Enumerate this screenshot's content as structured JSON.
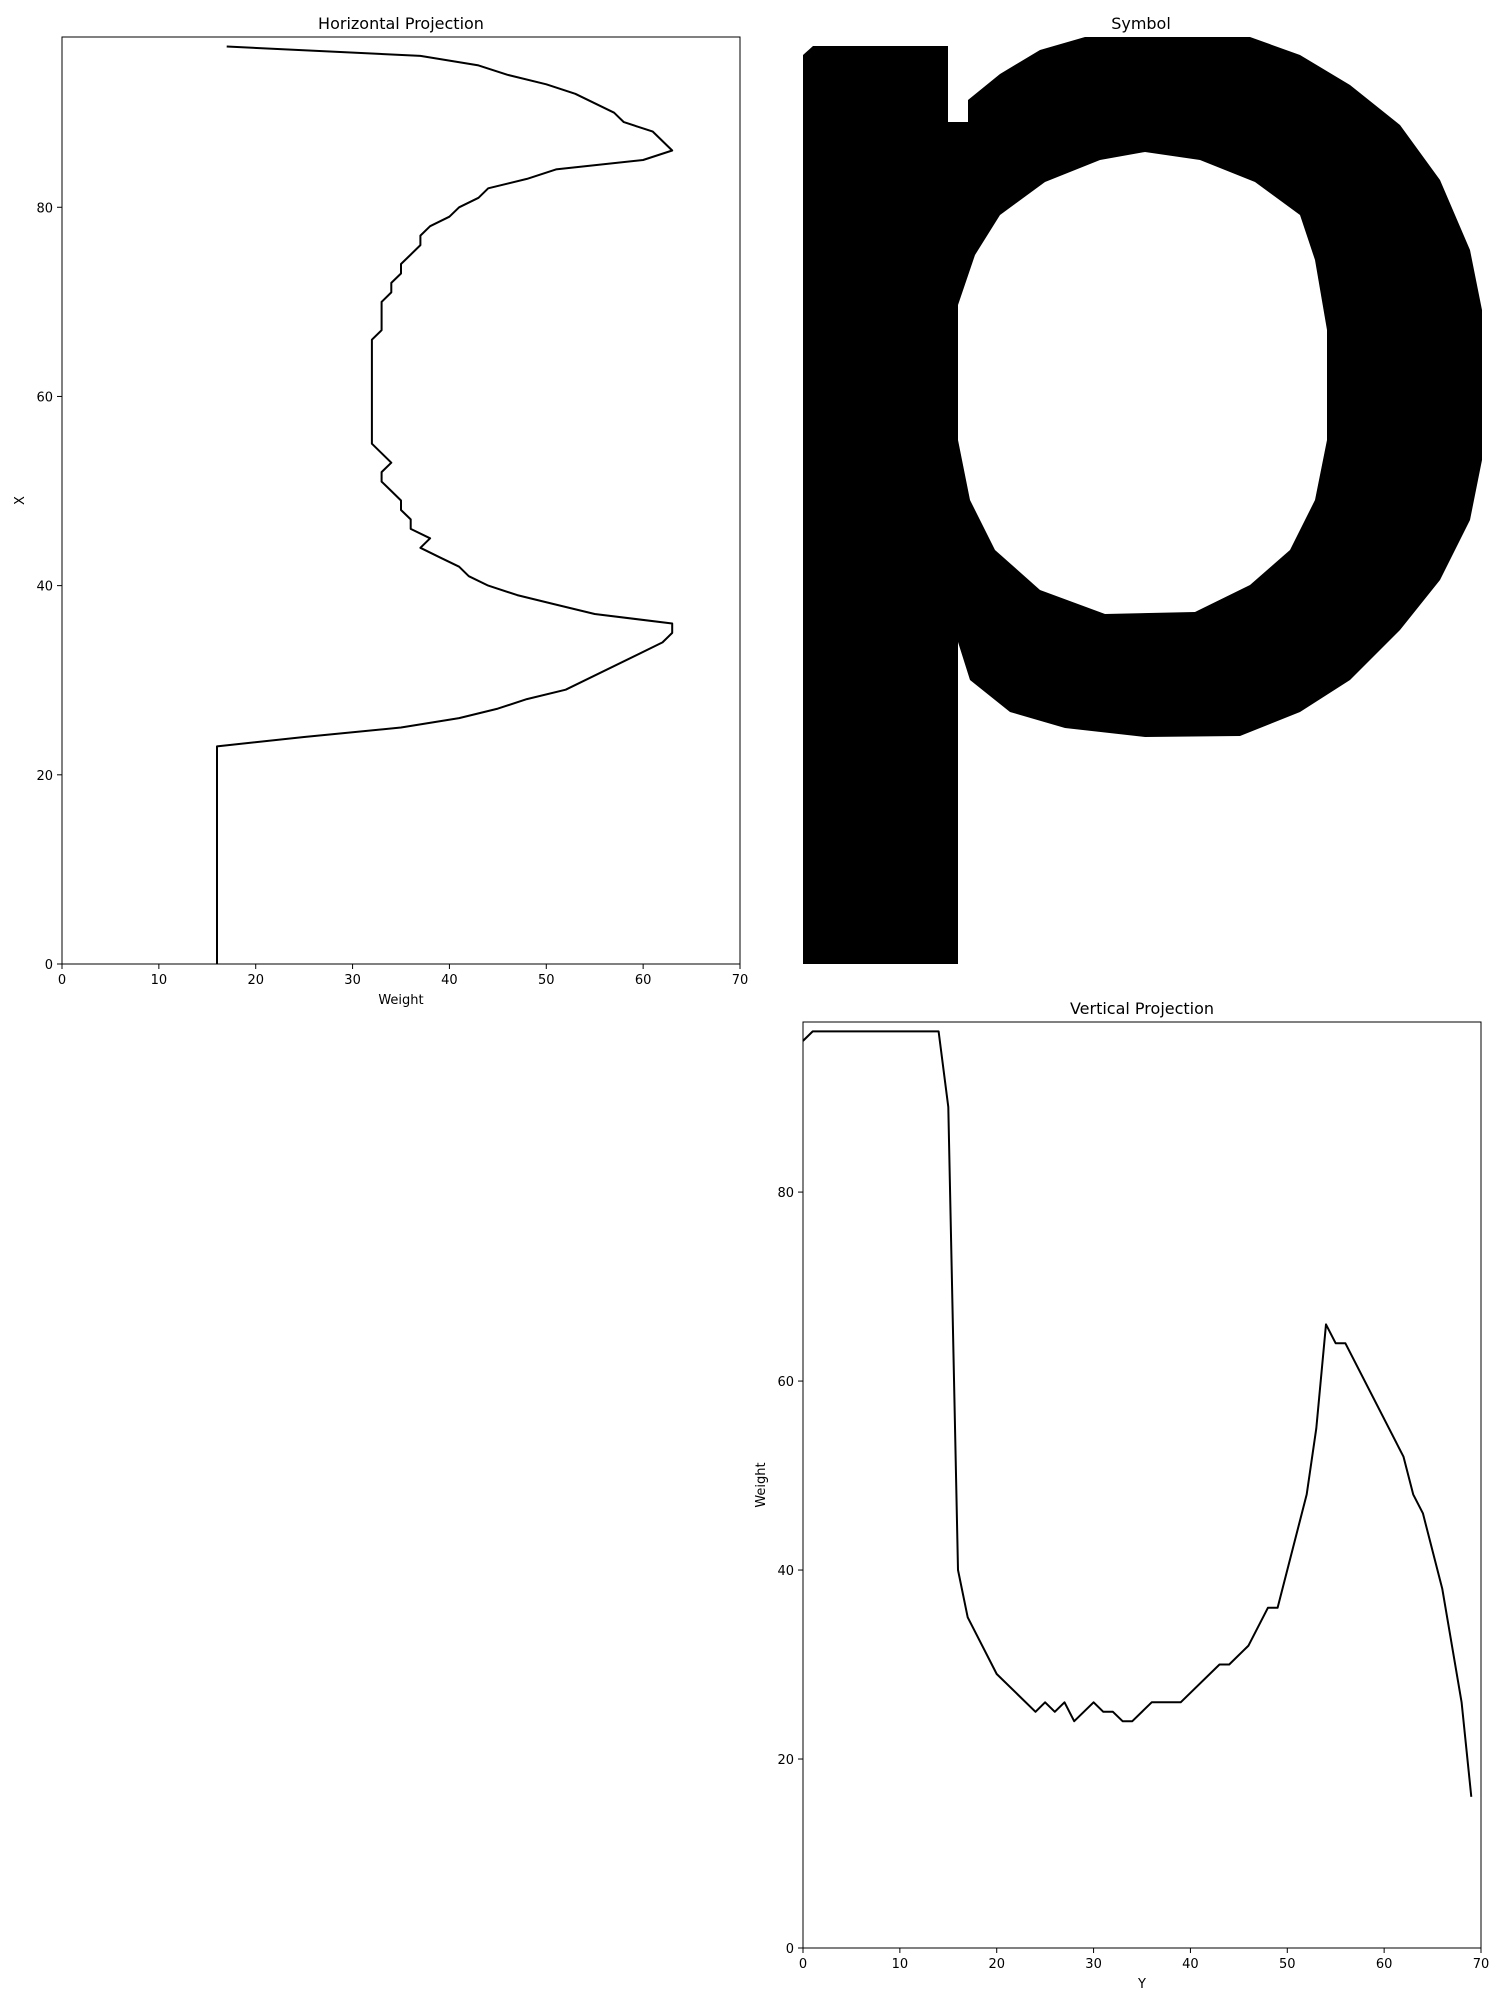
{
  "chart_data": [
    {
      "type": "line",
      "title": "Horizontal Projection",
      "xlabel": "Weight",
      "ylabel": "X",
      "xlim": [
        0,
        70
      ],
      "ylim": [
        0,
        98
      ],
      "xticks": [
        0,
        10,
        20,
        30,
        40,
        50,
        60,
        70
      ],
      "yticks": [
        0,
        20,
        40,
        60,
        80
      ],
      "grid": false,
      "series": [
        {
          "color": "#000000",
          "points": [
            [
              16,
              0
            ],
            [
              16,
              5
            ],
            [
              16,
              10
            ],
            [
              16,
              15
            ],
            [
              16,
              20
            ],
            [
              16,
              23
            ],
            [
              25,
              24
            ],
            [
              35,
              25
            ],
            [
              41,
              26
            ],
            [
              45,
              27
            ],
            [
              48,
              28
            ],
            [
              52,
              29
            ],
            [
              62,
              34
            ],
            [
              63,
              35
            ],
            [
              63,
              36
            ],
            [
              55,
              37
            ],
            [
              51,
              38
            ],
            [
              47,
              39
            ],
            [
              44,
              40
            ],
            [
              42,
              41
            ],
            [
              41,
              42
            ],
            [
              39,
              43
            ],
            [
              37,
              44
            ],
            [
              38,
              45
            ],
            [
              36,
              46
            ],
            [
              36,
              47
            ],
            [
              35,
              48
            ],
            [
              35,
              49
            ],
            [
              34,
              50
            ],
            [
              33,
              51
            ],
            [
              33,
              52
            ],
            [
              34,
              53
            ],
            [
              33,
              54
            ],
            [
              32,
              55
            ],
            [
              32,
              60
            ],
            [
              32,
              66
            ],
            [
              33,
              67
            ],
            [
              33,
              70
            ],
            [
              34,
              71
            ],
            [
              34,
              72
            ],
            [
              35,
              73
            ],
            [
              35,
              74
            ],
            [
              36,
              75
            ],
            [
              37,
              76
            ],
            [
              37,
              77
            ],
            [
              38,
              78
            ],
            [
              40,
              79
            ],
            [
              41,
              80
            ],
            [
              43,
              81
            ],
            [
              44,
              82
            ],
            [
              48,
              83
            ],
            [
              51,
              84
            ],
            [
              60,
              85
            ],
            [
              63,
              86
            ],
            [
              61,
              88
            ],
            [
              58,
              89
            ],
            [
              57,
              90
            ],
            [
              53,
              92
            ],
            [
              50,
              93
            ],
            [
              46,
              94
            ],
            [
              43,
              95
            ],
            [
              37,
              96
            ],
            [
              17,
              97
            ]
          ]
        }
      ]
    },
    {
      "type": "heatmap",
      "title": "Symbol",
      "colors": {
        "foreground": "#000000",
        "background": "#ffffff"
      },
      "axes_visible": false
    },
    {
      "type": "line",
      "title": "Vertical Projection",
      "xlabel": "Y",
      "ylabel": "Weight",
      "xlim": [
        0,
        70
      ],
      "ylim": [
        0,
        98
      ],
      "xticks": [
        0,
        10,
        20,
        30,
        40,
        50,
        60,
        70
      ],
      "yticks": [
        0,
        20,
        40,
        60,
        80
      ],
      "grid": false,
      "series": [
        {
          "color": "#000000",
          "points": [
            [
              0,
              96
            ],
            [
              1,
              97
            ],
            [
              5,
              97
            ],
            [
              10,
              97
            ],
            [
              14,
              97
            ],
            [
              15,
              89
            ],
            [
              16,
              40
            ],
            [
              17,
              35
            ],
            [
              20,
              29
            ],
            [
              24,
              25
            ],
            [
              25,
              26
            ],
            [
              26,
              25
            ],
            [
              27,
              26
            ],
            [
              28,
              24
            ],
            [
              30,
              26
            ],
            [
              31,
              25
            ],
            [
              32,
              25
            ],
            [
              33,
              24
            ],
            [
              34,
              24
            ],
            [
              36,
              26
            ],
            [
              39,
              26
            ],
            [
              43,
              30
            ],
            [
              44,
              30
            ],
            [
              46,
              32
            ],
            [
              48,
              36
            ],
            [
              49,
              36
            ],
            [
              52,
              48
            ],
            [
              53,
              55
            ],
            [
              54,
              66
            ],
            [
              55,
              64
            ],
            [
              56,
              64
            ],
            [
              62,
              52
            ],
            [
              63,
              48
            ],
            [
              64,
              46
            ],
            [
              66,
              38
            ],
            [
              68,
              26
            ],
            [
              69,
              16
            ]
          ]
        }
      ]
    }
  ]
}
